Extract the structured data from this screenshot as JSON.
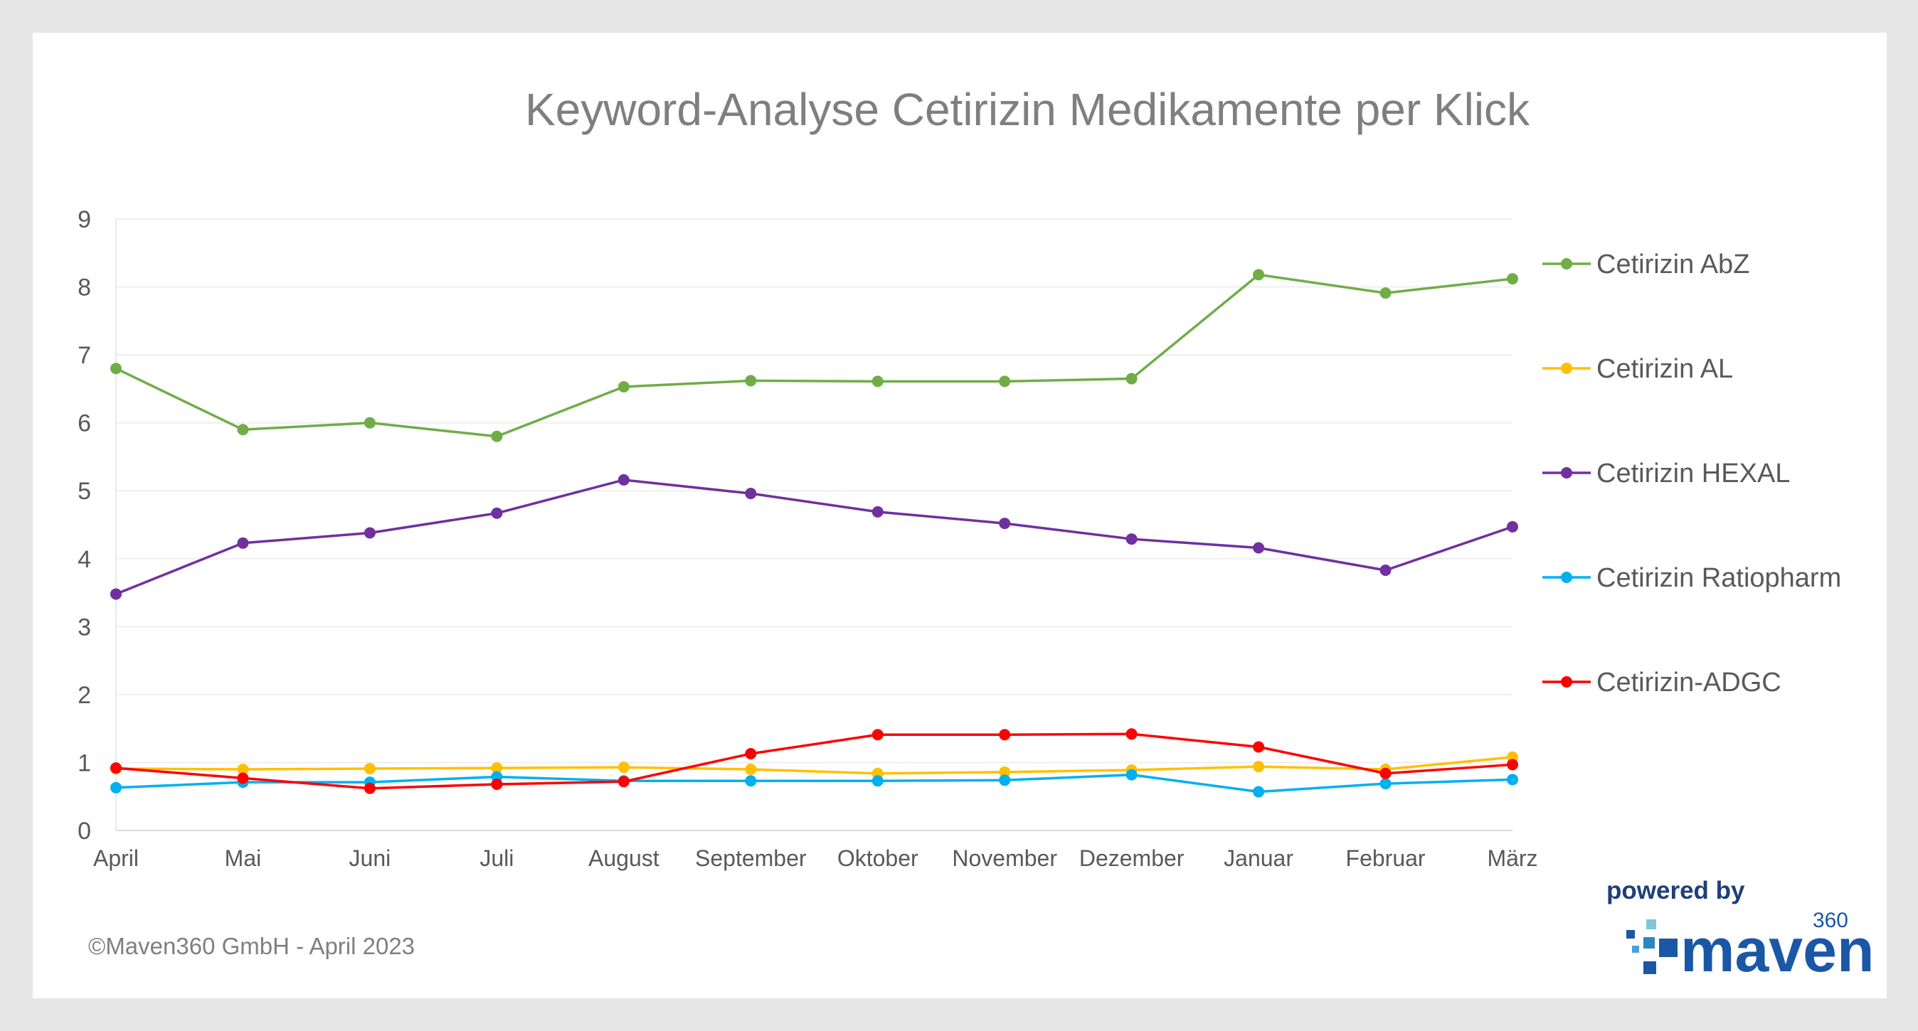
{
  "chart_data": {
    "type": "line",
    "title": "Keyword-Analyse Cetirizin Medikamente per Klick",
    "xlabel": "",
    "ylabel": "",
    "ylim": [
      0,
      9
    ],
    "y_ticks": [
      "0",
      "1",
      "2",
      "3",
      "4",
      "5",
      "6",
      "7",
      "8",
      "9"
    ],
    "grid": true,
    "legend_position": "right",
    "categories": [
      "April",
      "Mai",
      "Juni",
      "Juli",
      "August",
      "September",
      "Oktober",
      "November",
      "Dezember",
      "Januar",
      "Februar",
      "März"
    ],
    "series": [
      {
        "name": "Cetirizin AbZ",
        "color": "#70ad47",
        "values": [
          6.8,
          5.9,
          6.0,
          5.8,
          6.53,
          6.62,
          6.61,
          6.61,
          6.65,
          8.18,
          7.91,
          8.12
        ]
      },
      {
        "name": "Cetirizin AL",
        "color": "#ffc000",
        "values": [
          0.91,
          0.9,
          0.91,
          0.92,
          0.93,
          0.9,
          0.84,
          0.86,
          0.89,
          0.94,
          0.9,
          1.08
        ]
      },
      {
        "name": "Cetirizin HEXAL",
        "color": "#7030a0",
        "values": [
          3.48,
          4.23,
          4.38,
          4.67,
          5.16,
          4.96,
          4.69,
          4.52,
          4.29,
          4.16,
          3.83,
          4.47
        ]
      },
      {
        "name": "Cetirizin Ratiopharm",
        "color": "#00b0f0",
        "values": [
          0.63,
          0.71,
          0.71,
          0.79,
          0.73,
          0.73,
          0.73,
          0.74,
          0.82,
          0.57,
          0.69,
          0.75
        ]
      },
      {
        "name": "Cetirizin-ADGC",
        "color": "#ff0000",
        "values": [
          0.92,
          0.77,
          0.62,
          0.68,
          0.72,
          1.13,
          1.41,
          1.41,
          1.42,
          1.23,
          0.84,
          0.97
        ]
      }
    ]
  },
  "footer": {
    "copyright": "©Maven360 GmbH -  April 2023"
  },
  "logo": {
    "powered_by": "powered by",
    "wordmark": "maven",
    "superscript": "360"
  }
}
